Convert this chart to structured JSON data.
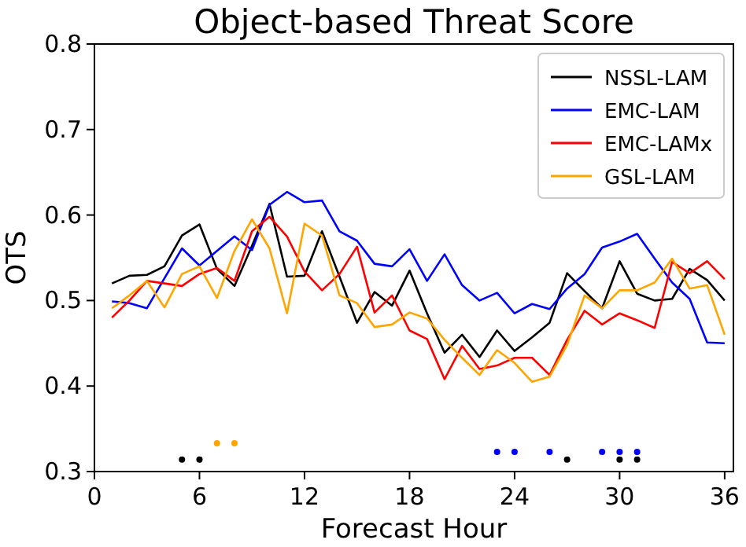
{
  "chart_data": {
    "type": "line",
    "title": "Object-based Threat Score",
    "xlabel": "Forecast Hour",
    "ylabel": "OTS",
    "x": [
      1,
      2,
      3,
      4,
      5,
      6,
      7,
      8,
      9,
      10,
      11,
      12,
      13,
      14,
      15,
      16,
      17,
      18,
      19,
      20,
      21,
      22,
      23,
      24,
      25,
      26,
      27,
      28,
      29,
      30,
      31,
      32,
      33,
      34,
      35,
      36
    ],
    "series": [
      {
        "name": "NSSL-LAM",
        "color": "#000000",
        "values": [
          0.52,
          0.529,
          0.53,
          0.54,
          0.576,
          0.589,
          0.537,
          0.517,
          0.564,
          0.613,
          0.528,
          0.529,
          0.581,
          0.528,
          0.474,
          0.51,
          0.494,
          0.535,
          0.485,
          0.439,
          0.46,
          0.434,
          0.465,
          0.441,
          0.457,
          0.474,
          0.532,
          0.511,
          0.491,
          0.546,
          0.508,
          0.5,
          0.502,
          0.537,
          0.524,
          0.5
        ]
      },
      {
        "name": "EMC-LAM",
        "color": "#0000ff",
        "values": [
          0.499,
          0.497,
          0.491,
          0.526,
          0.561,
          0.541,
          0.558,
          0.575,
          0.559,
          0.612,
          0.627,
          0.615,
          0.617,
          0.581,
          0.57,
          0.543,
          0.54,
          0.56,
          0.523,
          0.554,
          0.518,
          0.5,
          0.509,
          0.485,
          0.496,
          0.49,
          0.514,
          0.531,
          0.562,
          0.569,
          0.578,
          0.549,
          0.521,
          0.502,
          0.451,
          0.45
        ]
      },
      {
        "name": "EMC-LAMx",
        "color": "#ff0000",
        "values": [
          0.48,
          0.5,
          0.523,
          0.52,
          0.517,
          0.531,
          0.538,
          0.523,
          0.581,
          0.598,
          0.575,
          0.534,
          0.512,
          0.531,
          0.563,
          0.486,
          0.506,
          0.465,
          0.455,
          0.408,
          0.447,
          0.42,
          0.424,
          0.433,
          0.433,
          0.413,
          0.454,
          0.488,
          0.472,
          0.485,
          0.477,
          0.468,
          0.545,
          0.532,
          0.546,
          0.525
        ]
      },
      {
        "name": "GSL-LAM",
        "color": "#ffa500",
        "values": [
          0.491,
          0.506,
          0.523,
          0.492,
          0.531,
          0.54,
          0.503,
          0.558,
          0.595,
          0.561,
          0.485,
          0.59,
          0.576,
          0.506,
          0.497,
          0.469,
          0.472,
          0.486,
          0.479,
          0.454,
          0.433,
          0.413,
          0.442,
          0.427,
          0.405,
          0.411,
          0.448,
          0.506,
          0.491,
          0.512,
          0.512,
          0.521,
          0.549,
          0.514,
          0.518,
          0.46
        ]
      },
      {
        "type": "scatter",
        "color": "#000000",
        "x": [
          5,
          6,
          27,
          30,
          31
        ],
        "values": [
          0.314,
          0.314,
          0.314,
          0.314,
          0.314
        ]
      },
      {
        "type": "scatter",
        "color": "#ffa500",
        "x": [
          7,
          8
        ],
        "values": [
          0.333,
          0.333
        ]
      },
      {
        "type": "scatter",
        "color": "#0000ff",
        "x": [
          23,
          24,
          26,
          29,
          30,
          31
        ],
        "values": [
          0.323,
          0.323,
          0.323,
          0.323,
          0.323,
          0.323
        ]
      }
    ],
    "xlim": [
      0,
      36.5
    ],
    "xticks": [
      0,
      6,
      12,
      18,
      24,
      30,
      36
    ],
    "ylim": [
      0.3,
      0.8
    ],
    "yticks": [
      0.3,
      0.4,
      0.5,
      0.6,
      0.7,
      0.8
    ],
    "grid": false,
    "legend": "top right"
  }
}
